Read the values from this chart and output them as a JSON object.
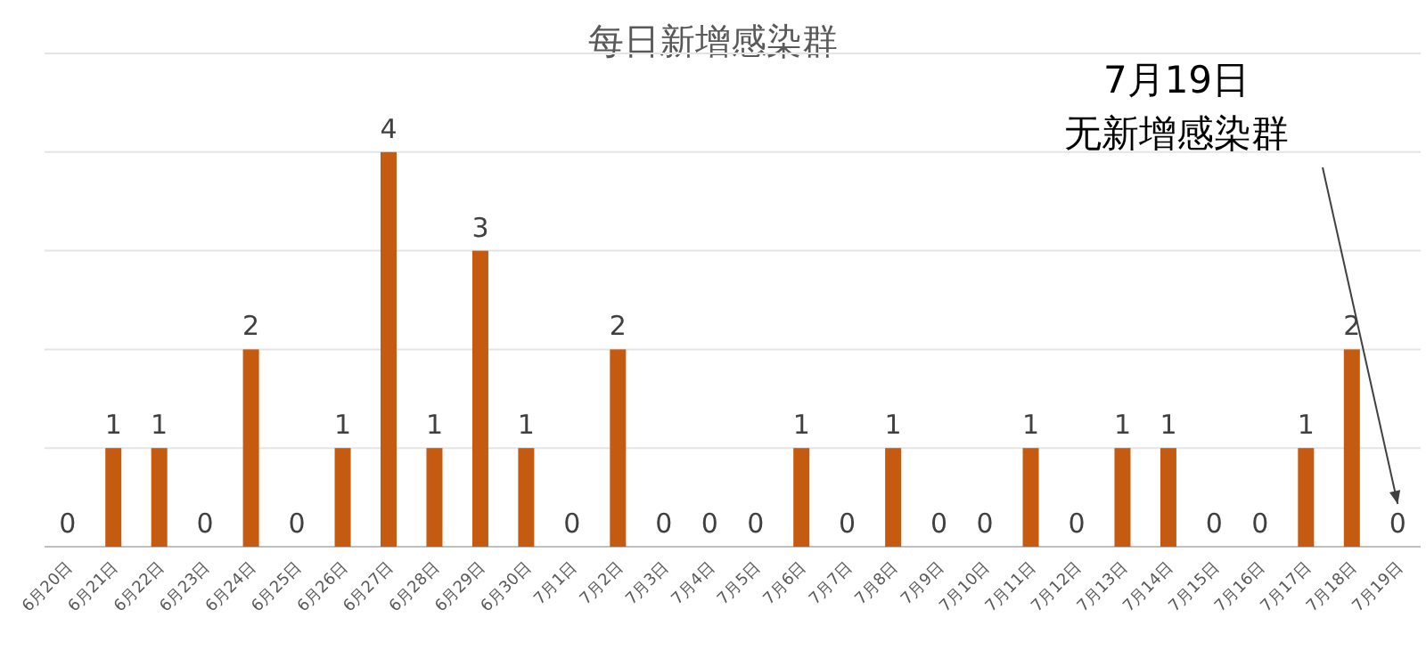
{
  "chart_data": {
    "type": "bar",
    "title": "每日新增感染群",
    "categories": [
      "6月20日",
      "6月21日",
      "6月22日",
      "6月23日",
      "6月24日",
      "6月25日",
      "6月26日",
      "6月27日",
      "6月28日",
      "6月29日",
      "6月30日",
      "7月1日",
      "7月2日",
      "7月3日",
      "7月4日",
      "7月5日",
      "7月6日",
      "7月7日",
      "7月8日",
      "7月9日",
      "7月10日",
      "7月11日",
      "7月12日",
      "7月13日",
      "7月14日",
      "7月15日",
      "7月16日",
      "7月17日",
      "7月18日",
      "7月19日"
    ],
    "values": [
      0,
      1,
      1,
      0,
      2,
      0,
      1,
      4,
      1,
      3,
      1,
      0,
      2,
      0,
      0,
      0,
      1,
      0,
      1,
      0,
      0,
      1,
      0,
      1,
      1,
      0,
      0,
      1,
      2,
      0
    ],
    "color": "#c55a11",
    "data_labels": true,
    "grid": "y",
    "ylim": [
      0,
      5
    ],
    "yticks": [
      {
        "value": 0,
        "label": null
      },
      {
        "value": 1,
        "label": null
      },
      {
        "value": 2,
        "label": null
      },
      {
        "value": 3,
        "label": null
      },
      {
        "value": 4,
        "label": null
      },
      {
        "value": 5,
        "label": null
      }
    ],
    "tick_labels": "x",
    "annotations": [
      "7月19日",
      "无新增感染群"
    ]
  }
}
